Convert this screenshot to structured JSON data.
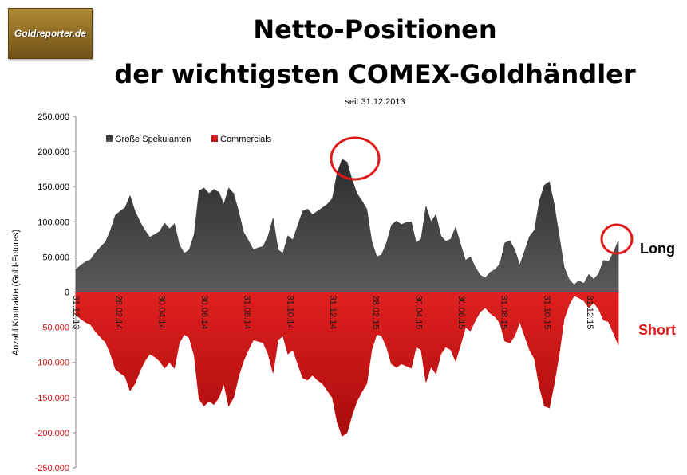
{
  "logo": {
    "text": "Goldreporter.de"
  },
  "title_line1": "Netto-Positionen",
  "title_line2": "der wichtigsten COMEX-Goldhändler",
  "subtitle": "seit 31.12.2013",
  "annotations": {
    "long": "Long",
    "short": "Short"
  },
  "colors": {
    "long_series": "#4a4a4a",
    "short_series": "#cc1111",
    "circle": "#e01a1a",
    "long_text": "#000000",
    "short_text": "#e01a1a"
  },
  "chart_data": {
    "type": "area",
    "ylabel": "Anzahl Kontrakte (Gold-Futures)",
    "ylim": [
      -250000,
      250000
    ],
    "yticks": [
      {
        "value": 250000,
        "label": "250.000",
        "color": "#000000"
      },
      {
        "value": 200000,
        "label": "200.000",
        "color": "#000000"
      },
      {
        "value": 150000,
        "label": "150.000",
        "color": "#000000"
      },
      {
        "value": 100000,
        "label": "100.000",
        "color": "#000000"
      },
      {
        "value": 50000,
        "label": "50.000",
        "color": "#000000"
      },
      {
        "value": 0,
        "label": "0",
        "color": "#000000"
      },
      {
        "value": -50000,
        "label": "-50.000",
        "color": "#cc1111"
      },
      {
        "value": -100000,
        "label": "-100.000",
        "color": "#cc1111"
      },
      {
        "value": -150000,
        "label": "-150.000",
        "color": "#cc1111"
      },
      {
        "value": -200000,
        "label": "-200.000",
        "color": "#cc1111"
      },
      {
        "value": -250000,
        "label": "-250.000",
        "color": "#cc1111"
      }
    ],
    "xticks": [
      "31.12.13",
      "28.02.14",
      "30.04.14",
      "30.06.14",
      "31.08.14",
      "31.10.14",
      "31.12.14",
      "28.02.15",
      "30.04.15",
      "30.06.15",
      "31.08.15",
      "31.10.15",
      "31.12.15"
    ],
    "grid": false,
    "legend_position": "top-left",
    "series": [
      {
        "name": "Große Spekulanten",
        "values": [
          32000,
          38000,
          43000,
          46000,
          56000,
          64000,
          71000,
          87000,
          109000,
          115000,
          120000,
          137000,
          115000,
          100000,
          88000,
          78000,
          82000,
          86000,
          98000,
          90000,
          97000,
          67000,
          55000,
          60000,
          82000,
          144000,
          148000,
          140000,
          146000,
          142000,
          125000,
          148000,
          140000,
          115000,
          85000,
          73000,
          60000,
          63000,
          65000,
          80000,
          105000,
          60000,
          55000,
          80000,
          74000,
          95000,
          115000,
          118000,
          110000,
          115000,
          120000,
          125000,
          133000,
          170000,
          189000,
          185000,
          160000,
          140000,
          130000,
          118000,
          72000,
          50000,
          53000,
          70000,
          95000,
          101000,
          96000,
          99000,
          100000,
          70000,
          75000,
          122000,
          100000,
          110000,
          80000,
          72000,
          75000,
          92000,
          68000,
          45000,
          50000,
          35000,
          24000,
          20000,
          28000,
          32000,
          40000,
          70000,
          73000,
          60000,
          38000,
          58000,
          79000,
          88000,
          130000,
          152000,
          157000,
          124000,
          80000,
          35000,
          18000,
          10000,
          16000,
          12000,
          25000,
          18000,
          26000,
          45000,
          43000,
          56000,
          73000
        ]
      },
      {
        "name": "Commercials",
        "values": [
          -32000,
          -38000,
          -43000,
          -46000,
          -56000,
          -64000,
          -71000,
          -87000,
          -109000,
          -115000,
          -120000,
          -140000,
          -130000,
          -112000,
          -98000,
          -88000,
          -92000,
          -98000,
          -108000,
          -100000,
          -108000,
          -72000,
          -60000,
          -65000,
          -90000,
          -152000,
          -162000,
          -155000,
          -160000,
          -150000,
          -130000,
          -162000,
          -150000,
          -120000,
          -98000,
          -82000,
          -68000,
          -70000,
          -72000,
          -88000,
          -115000,
          -68000,
          -62000,
          -88000,
          -82000,
          -102000,
          -122000,
          -125000,
          -118000,
          -125000,
          -130000,
          -140000,
          -150000,
          -185000,
          -205000,
          -200000,
          -175000,
          -155000,
          -142000,
          -130000,
          -82000,
          -60000,
          -62000,
          -78000,
          -102000,
          -107000,
          -102000,
          -105000,
          -108000,
          -78000,
          -82000,
          -128000,
          -106000,
          -116000,
          -88000,
          -78000,
          -82000,
          -98000,
          -75000,
          -50000,
          -55000,
          -40000,
          -28000,
          -22000,
          -30000,
          -35000,
          -44000,
          -70000,
          -72000,
          -62000,
          -42000,
          -62000,
          -82000,
          -95000,
          -135000,
          -162000,
          -165000,
          -130000,
          -88000,
          -38000,
          -18000,
          -5000,
          -8000,
          -12000,
          -22000,
          -15000,
          -24000,
          -40000,
          -42000,
          -58000,
          -75000
        ]
      }
    ]
  }
}
